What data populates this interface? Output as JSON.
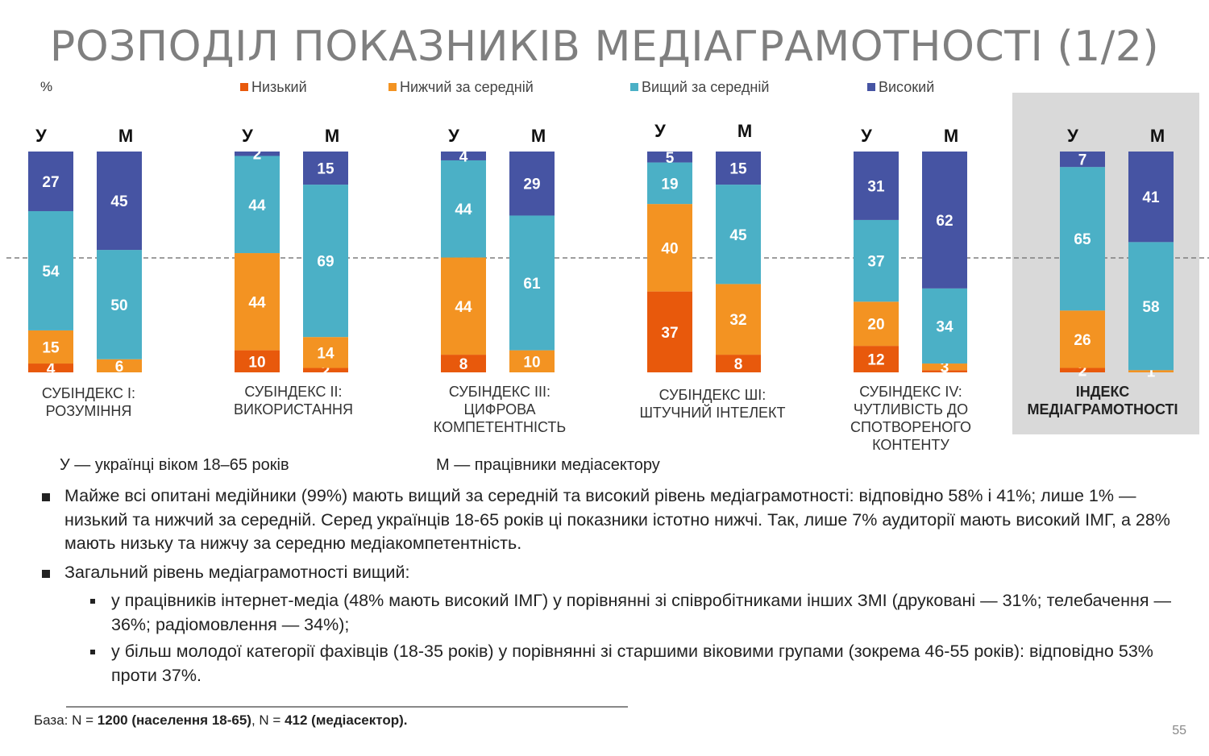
{
  "title": "РОЗПОДІЛ ПОКАЗНИКІВ МЕДІАГРАМОТНОСТІ (1/2)",
  "unit": "%",
  "legend": [
    {
      "label": "Низький",
      "color": "#e8590c"
    },
    {
      "label": "Нижчий за середній",
      "color": "#f39322"
    },
    {
      "label": "Вищий за середній",
      "color": "#4bb0c6"
    },
    {
      "label": "Високий",
      "color": "#4654a3"
    }
  ],
  "chart_data": {
    "type": "bar",
    "stacked": true,
    "ylim": [
      0,
      100
    ],
    "series_names": [
      "Низький",
      "Нижчий за середній",
      "Вищий за середній",
      "Високий"
    ],
    "series_colors": [
      "#e8590c",
      "#f39322",
      "#4bb0c6",
      "#4654a3"
    ],
    "groups": [
      {
        "label": "СУБІНДЕКС І: РОЗУМІННЯ",
        "bold": false,
        "bars": [
          {
            "label": "У",
            "values": [
              4,
              15,
              54,
              27
            ]
          },
          {
            "label": "М",
            "values": [
              0,
              6,
              50,
              45
            ]
          }
        ]
      },
      {
        "label": "СУБІНДЕКС ІІ: ВИКОРИСТАННЯ",
        "bold": false,
        "bars": [
          {
            "label": "У",
            "values": [
              10,
              44,
              44,
              2
            ]
          },
          {
            "label": "М",
            "values": [
              2,
              14,
              69,
              15
            ]
          }
        ]
      },
      {
        "label": "СУБІНДЕКС ІІІ: ЦИФРОВА КОМПЕТЕНТНІСТЬ",
        "bold": false,
        "bars": [
          {
            "label": "У",
            "values": [
              8,
              44,
              44,
              4
            ]
          },
          {
            "label": "М",
            "values": [
              0,
              10,
              61,
              29
            ]
          }
        ]
      },
      {
        "label": "СУБІНДЕКС ШІ: ШТУЧНИЙ ІНТЕЛЕКТ",
        "bold": false,
        "bars": [
          {
            "label": "У",
            "values": [
              37,
              40,
              19,
              5
            ]
          },
          {
            "label": "М",
            "values": [
              8,
              32,
              45,
              15
            ]
          }
        ]
      },
      {
        "label": "СУБІНДЕКС IV: ЧУТЛИВІСТЬ ДО СПОТВОРЕНОГО КОНТЕНТУ",
        "bold": false,
        "bars": [
          {
            "label": "У",
            "values": [
              12,
              20,
              37,
              31
            ]
          },
          {
            "label": "М",
            "values": [
              1,
              3,
              34,
              62
            ]
          }
        ]
      },
      {
        "label": "ІНДЕКС МЕДІАГРАМОТНОСТІ",
        "bold": true,
        "bars": [
          {
            "label": "У",
            "values": [
              2,
              26,
              65,
              7
            ]
          },
          {
            "label": "М",
            "values": [
              0,
              1,
              58,
              41
            ]
          }
        ]
      }
    ],
    "reference_line": 50
  },
  "group_label_lines": [
    [
      "СУБІНДЕКС І:",
      "РОЗУМІННЯ"
    ],
    [
      "СУБІНДЕКС ІІ:",
      "ВИКОРИСТАННЯ"
    ],
    [
      "СУБІНДЕКС ІІІ:",
      "ЦИФРОВА",
      "КОМПЕТЕНТНІСТЬ"
    ],
    [
      "СУБІНДЕКС ШІ:",
      "ШТУЧНИЙ ІНТЕЛЕКТ"
    ],
    [
      "СУБІНДЕКС IV:",
      "ЧУТЛИВІСТЬ ДО",
      "СПОТВОРЕНОГО",
      "КОНТЕНТУ"
    ],
    [
      "ІНДЕКС",
      "МЕДІАГРАМОТНОСТІ"
    ]
  ],
  "legend_notes": {
    "u": "У — українці віком 18–65 років",
    "m": "М — працівники медіасектору"
  },
  "bullets": {
    "b1": " Майже всі опитані медійники (99%) мають вищий за середній та високий рівень медіаграмотності: відповідно 58% і 41%; лише 1% — низький та нижчий за середній. Серед українців 18-65 років ці показники істотно нижчі. Так, лише 7% аудиторії мають високий ІМГ, а 28% мають низьку та нижчу за середню медіакомпетентність.",
    "b2": "Загальний рівень медіаграмотності вищий:",
    "s1": "у працівників інтернет-медіа (48% мають високий ІМГ) у порівнянні зі співробітниками інших ЗМІ (друковані — 31%; телебачення — 36%; радіомовлення — 34%);",
    "s2": "у більш молодої категорії фахівців (18-35 років) у порівнянні зі старшими віковими групами (зокрема 46-55 років): відповідно 53% проти 37%."
  },
  "base": {
    "prefix": "База: N = ",
    "pop": "1200 (населення 18-65)",
    "mid": ", N = ",
    "media": "412 (медіасектор)."
  },
  "page_number": "55"
}
